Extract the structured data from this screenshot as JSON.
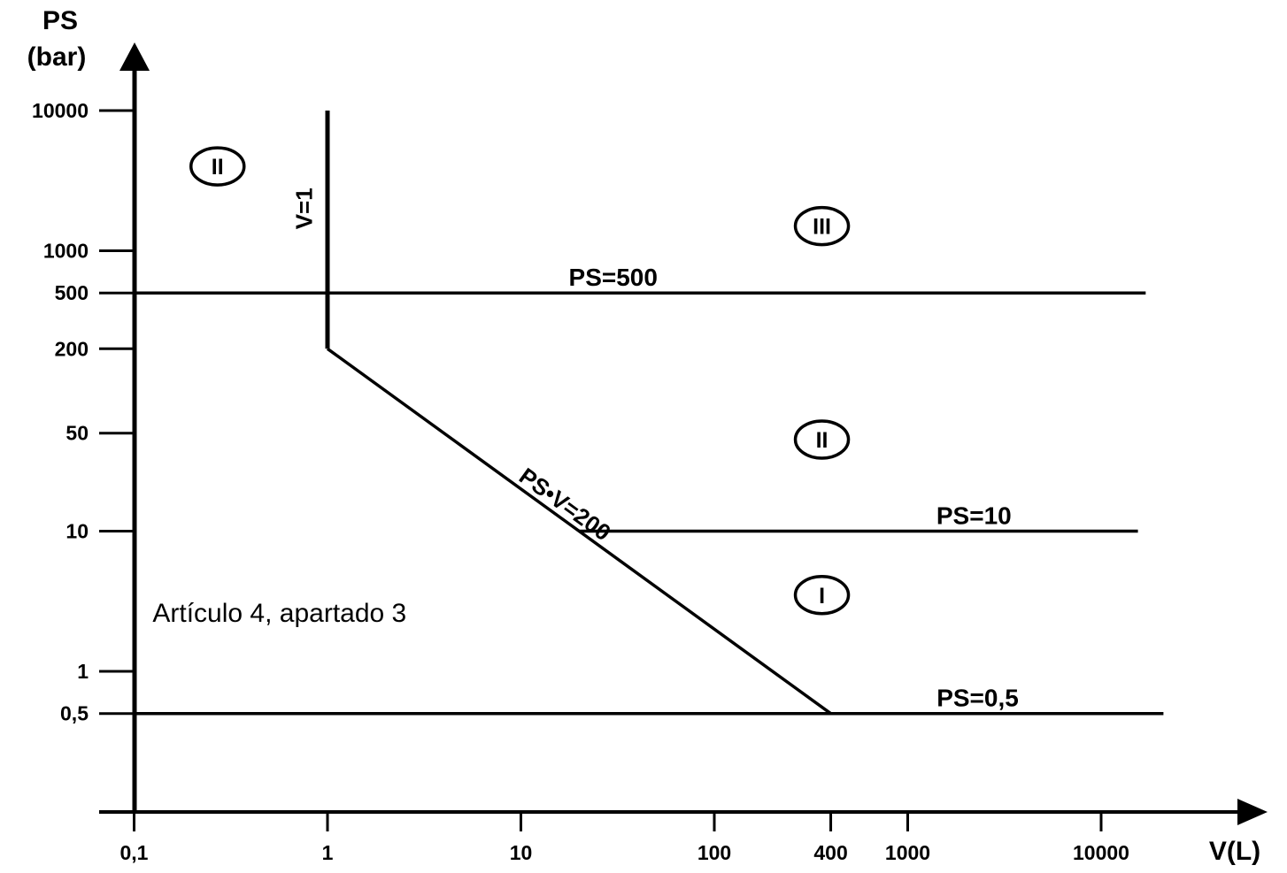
{
  "chart_data": {
    "type": "line",
    "title": "",
    "xlabel": "V(L)",
    "ylabel_line1": "PS",
    "ylabel_line2": "(bar)",
    "xscale": "log",
    "yscale": "log",
    "xlim": [
      0.1,
      30000
    ],
    "ylim": [
      0.1,
      10000
    ],
    "grid": false,
    "x_ticks": [
      {
        "value": 0.1,
        "label": "0,1"
      },
      {
        "value": 1,
        "label": "1"
      },
      {
        "value": 10,
        "label": "10"
      },
      {
        "value": 100,
        "label": "100"
      },
      {
        "value": 400,
        "label": "400"
      },
      {
        "value": 1000,
        "label": "1000"
      },
      {
        "value": 10000,
        "label": "10000"
      }
    ],
    "y_ticks": [
      {
        "value": 10000,
        "label": "10000"
      },
      {
        "value": 1000,
        "label": "1000"
      },
      {
        "value": 500,
        "label": "500"
      },
      {
        "value": 200,
        "label": "200"
      },
      {
        "value": 50,
        "label": "50"
      },
      {
        "value": 10,
        "label": "10"
      },
      {
        "value": 1,
        "label": "1"
      },
      {
        "value": 0.5,
        "label": "0,5"
      }
    ],
    "series": [
      {
        "name": "PS=500",
        "points": [
          [
            0.1,
            500
          ],
          [
            17000,
            500
          ]
        ]
      },
      {
        "name": "V=1",
        "points": [
          [
            1,
            10000
          ],
          [
            1,
            200
          ]
        ]
      },
      {
        "name": "PS·V=200",
        "points": [
          [
            1,
            200
          ],
          [
            400,
            0.5
          ]
        ]
      },
      {
        "name": "PS=10",
        "points": [
          [
            20,
            10
          ],
          [
            15500,
            10
          ]
        ]
      },
      {
        "name": "PS=0,5",
        "points": [
          [
            0.1,
            0.5
          ],
          [
            21000,
            0.5
          ]
        ]
      }
    ],
    "line_labels": [
      {
        "text": "PS=500",
        "at": [
          30,
          500
        ]
      },
      {
        "text": "V=1",
        "at": [
          0.75,
          2000
        ],
        "rotation": "vertical"
      },
      {
        "text": "PS•V=200",
        "at": [
          16,
          14
        ],
        "rotation": "along-line"
      },
      {
        "text": "PS=10",
        "at": [
          2200,
          10
        ]
      },
      {
        "text": "PS=0,5",
        "at": [
          2300,
          0.5
        ]
      }
    ],
    "regions": [
      {
        "label": "II",
        "at": [
          0.27,
          4000
        ]
      },
      {
        "label": "III",
        "at": [
          360,
          1500
        ]
      },
      {
        "label": "II",
        "at": [
          360,
          45
        ]
      },
      {
        "label": "I",
        "at": [
          360,
          3.5
        ]
      }
    ],
    "annotations": [
      {
        "text": "Artículo 4, apartado 3",
        "at": [
          0.13,
          2.6
        ]
      }
    ]
  }
}
